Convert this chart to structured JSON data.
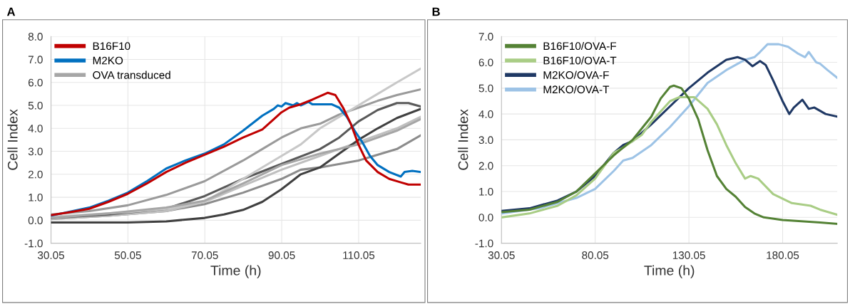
{
  "chart_data": [
    {
      "type": "line",
      "title": "A",
      "xlabel": "Time (h)",
      "ylabel": "Cell Index",
      "xlim": [
        30.05,
        126.2
      ],
      "ylim": [
        -1,
        8
      ],
      "xticks": [
        30.05,
        50.05,
        70.05,
        90.05,
        110.05
      ],
      "yticks": [
        {
          "value": -1,
          "label": "-1.0"
        },
        {
          "value": 0,
          "label": "0.0"
        },
        {
          "value": 1,
          "label": "1.0"
        },
        {
          "value": 2,
          "label": "2.0"
        },
        {
          "value": 3,
          "label": "3.0"
        },
        {
          "value": 4,
          "label": "4.0"
        },
        {
          "value": 5,
          "label": "5.0"
        },
        {
          "value": 6,
          "label": "6.0"
        },
        {
          "value": 7,
          "label": "7.0"
        },
        {
          "value": 8,
          "label": "8.0"
        }
      ],
      "grid": true,
      "legend": "top left",
      "marker": "none",
      "line_style": "solid",
      "series": [
        {
          "name": "B16F10",
          "color": "#c00000",
          "x": [
            30.05,
            35,
            40,
            45,
            50,
            55,
            60,
            65,
            70,
            75,
            80,
            85,
            88,
            90,
            92,
            95,
            98,
            100,
            102,
            104,
            106,
            108,
            110,
            112,
            115,
            118,
            121,
            123,
            126.2
          ],
          "values": [
            0.22,
            0.35,
            0.5,
            0.8,
            1.15,
            1.6,
            2.1,
            2.5,
            2.85,
            3.2,
            3.6,
            3.95,
            4.4,
            4.7,
            4.9,
            5.05,
            5.25,
            5.4,
            5.55,
            5.45,
            4.9,
            4.2,
            3.3,
            2.6,
            2.1,
            1.8,
            1.65,
            1.55,
            1.55
          ]
        },
        {
          "name": "M2KO",
          "color": "#0070c0",
          "x": [
            30.05,
            40,
            45,
            50,
            55,
            60,
            65,
            70,
            75,
            80,
            85,
            88,
            89,
            90,
            91,
            93,
            94,
            95,
            97,
            98,
            100,
            103,
            105,
            107,
            109,
            111,
            113,
            115,
            118,
            121,
            122,
            124,
            126.2
          ],
          "values": [
            0.2,
            0.55,
            0.85,
            1.2,
            1.7,
            2.25,
            2.6,
            2.9,
            3.3,
            3.9,
            4.55,
            4.85,
            5.0,
            4.95,
            5.1,
            5.0,
            5.1,
            5.0,
            5.15,
            5.05,
            5.05,
            5.05,
            4.9,
            4.5,
            3.9,
            3.4,
            2.8,
            2.4,
            2.1,
            1.9,
            2.1,
            2.15,
            2.1
          ]
        },
        {
          "name": "OVA transduced",
          "color": "#a6a6a6",
          "x": [
            30.05,
            45,
            60,
            70,
            80,
            90,
            100,
            110,
            120,
            126.2
          ],
          "values": [
            0.1,
            0.3,
            0.55,
            0.85,
            1.6,
            2.4,
            2.9,
            3.3,
            3.9,
            4.4
          ]
        },
        {
          "color": "#c8c8c8",
          "x": [
            30.05,
            50,
            60,
            70,
            80,
            90,
            95,
            100,
            105,
            110,
            115,
            120,
            126.2
          ],
          "values": [
            0.15,
            0.35,
            0.5,
            0.8,
            1.8,
            2.8,
            3.3,
            4.0,
            4.5,
            5.0,
            5.5,
            6.0,
            6.6
          ]
        },
        {
          "color": "#9a9a9a",
          "x": [
            30.05,
            40,
            50,
            60,
            70,
            80,
            85,
            90,
            95,
            100,
            105,
            110,
            115,
            120,
            126.2
          ],
          "values": [
            0.25,
            0.4,
            0.65,
            1.1,
            1.7,
            2.6,
            3.1,
            3.6,
            4.0,
            4.2,
            4.6,
            4.9,
            5.2,
            5.45,
            5.7
          ]
        },
        {
          "color": "#595959",
          "x": [
            30.05,
            45,
            60,
            70,
            80,
            90,
            100,
            105,
            110,
            115,
            120,
            123,
            126.2
          ],
          "values": [
            0.1,
            0.25,
            0.5,
            1.05,
            1.8,
            2.45,
            3.1,
            3.6,
            4.3,
            4.8,
            5.1,
            5.1,
            4.95
          ]
        },
        {
          "color": "#404040",
          "x": [
            30.05,
            40,
            50,
            60,
            70,
            75,
            80,
            85,
            90,
            95,
            100,
            105,
            110,
            115,
            120,
            126.2
          ],
          "values": [
            -0.1,
            -0.1,
            -0.1,
            -0.05,
            0.1,
            0.25,
            0.45,
            0.8,
            1.35,
            2.0,
            2.3,
            2.9,
            3.5,
            4.0,
            4.45,
            4.85
          ]
        },
        {
          "color": "#bfbfbf",
          "x": [
            30.05,
            45,
            60,
            70,
            80,
            90,
            100,
            110,
            120,
            126.2
          ],
          "values": [
            0.05,
            0.2,
            0.4,
            0.8,
            1.5,
            2.2,
            2.8,
            3.4,
            4.0,
            4.5
          ]
        },
        {
          "color": "#8c8c8c",
          "x": [
            30.05,
            45,
            60,
            70,
            80,
            90,
            95,
            100,
            110,
            120,
            126.2
          ],
          "values": [
            0.05,
            0.2,
            0.4,
            0.7,
            1.2,
            1.8,
            2.2,
            2.3,
            2.6,
            3.1,
            3.7
          ]
        }
      ]
    },
    {
      "type": "line",
      "title": "B",
      "xlabel": "Time (h)",
      "ylabel": "Cell Index",
      "xlim": [
        30.05,
        209.2
      ],
      "ylim": [
        -1,
        7
      ],
      "xticks": [
        30.05,
        80.05,
        130.05,
        180.05
      ],
      "yticks": [
        {
          "value": -1,
          "label": "-1.0"
        },
        {
          "value": 0,
          "label": "0.0"
        },
        {
          "value": 1,
          "label": "1.0"
        },
        {
          "value": 2,
          "label": "2.0"
        },
        {
          "value": 3,
          "label": "3.0"
        },
        {
          "value": 4,
          "label": "4.0"
        },
        {
          "value": 5,
          "label": "5.0"
        },
        {
          "value": 6,
          "label": "6.0"
        },
        {
          "value": 7,
          "label": "7.0"
        }
      ],
      "grid": true,
      "legend": "top left",
      "marker": "none",
      "line_style": "solid",
      "series": [
        {
          "name": "B16F10/OVA-F",
          "color": "#548235",
          "x": [
            30.05,
            45,
            60,
            70,
            80,
            90,
            100,
            110,
            115,
            120,
            122,
            126,
            130,
            135,
            140,
            145,
            150,
            155,
            160,
            165,
            170,
            180,
            190,
            200,
            209.2
          ],
          "values": [
            0.2,
            0.3,
            0.6,
            1.0,
            1.7,
            2.4,
            3.0,
            3.9,
            4.6,
            5.05,
            5.1,
            5.0,
            4.6,
            3.8,
            2.6,
            1.6,
            1.1,
            0.8,
            0.4,
            0.15,
            0.0,
            -0.1,
            -0.15,
            -0.2,
            -0.25
          ]
        },
        {
          "name": "B16F10/OVA-T",
          "color": "#a9cd85",
          "x": [
            30.05,
            45,
            60,
            70,
            80,
            90,
            95,
            100,
            105,
            110,
            115,
            120,
            125,
            133,
            140,
            145,
            150,
            155,
            160,
            163,
            167,
            175,
            185,
            195,
            200,
            209.2
          ],
          "values": [
            0.0,
            0.15,
            0.45,
            0.85,
            1.5,
            2.5,
            2.7,
            2.95,
            3.2,
            3.7,
            4.1,
            4.5,
            4.65,
            4.65,
            4.2,
            3.6,
            2.8,
            2.1,
            1.5,
            1.6,
            1.5,
            0.9,
            0.55,
            0.45,
            0.3,
            0.1
          ]
        },
        {
          "name": "M2KO/OVA-F",
          "color": "#1f3864",
          "x": [
            30.05,
            45,
            60,
            70,
            80,
            90,
            95,
            100,
            110,
            120,
            130,
            140,
            150,
            156,
            160,
            164,
            168,
            171,
            175,
            180,
            183.6,
            186,
            190.6,
            194,
            197,
            203,
            209.2
          ],
          "values": [
            0.25,
            0.35,
            0.65,
            1.0,
            1.6,
            2.5,
            2.8,
            2.95,
            3.6,
            4.3,
            5.0,
            5.6,
            6.1,
            6.2,
            6.1,
            5.85,
            6.05,
            5.9,
            5.3,
            4.5,
            4.0,
            4.25,
            4.55,
            4.2,
            4.25,
            4.0,
            3.9
          ]
        },
        {
          "name": "M2KO/OVA-T",
          "color": "#9dc3e6",
          "x": [
            30.05,
            50,
            70,
            80,
            90,
            95,
            100,
            110,
            120,
            130,
            140,
            150,
            160,
            165,
            168,
            172,
            178,
            183,
            188,
            192,
            194,
            198,
            200,
            204,
            209.2
          ],
          "values": [
            0.15,
            0.35,
            0.75,
            1.1,
            1.8,
            2.2,
            2.3,
            2.8,
            3.5,
            4.3,
            5.2,
            5.7,
            6.1,
            6.2,
            6.4,
            6.7,
            6.7,
            6.6,
            6.35,
            6.2,
            6.4,
            6.0,
            5.95,
            5.7,
            5.4
          ]
        }
      ]
    }
  ]
}
